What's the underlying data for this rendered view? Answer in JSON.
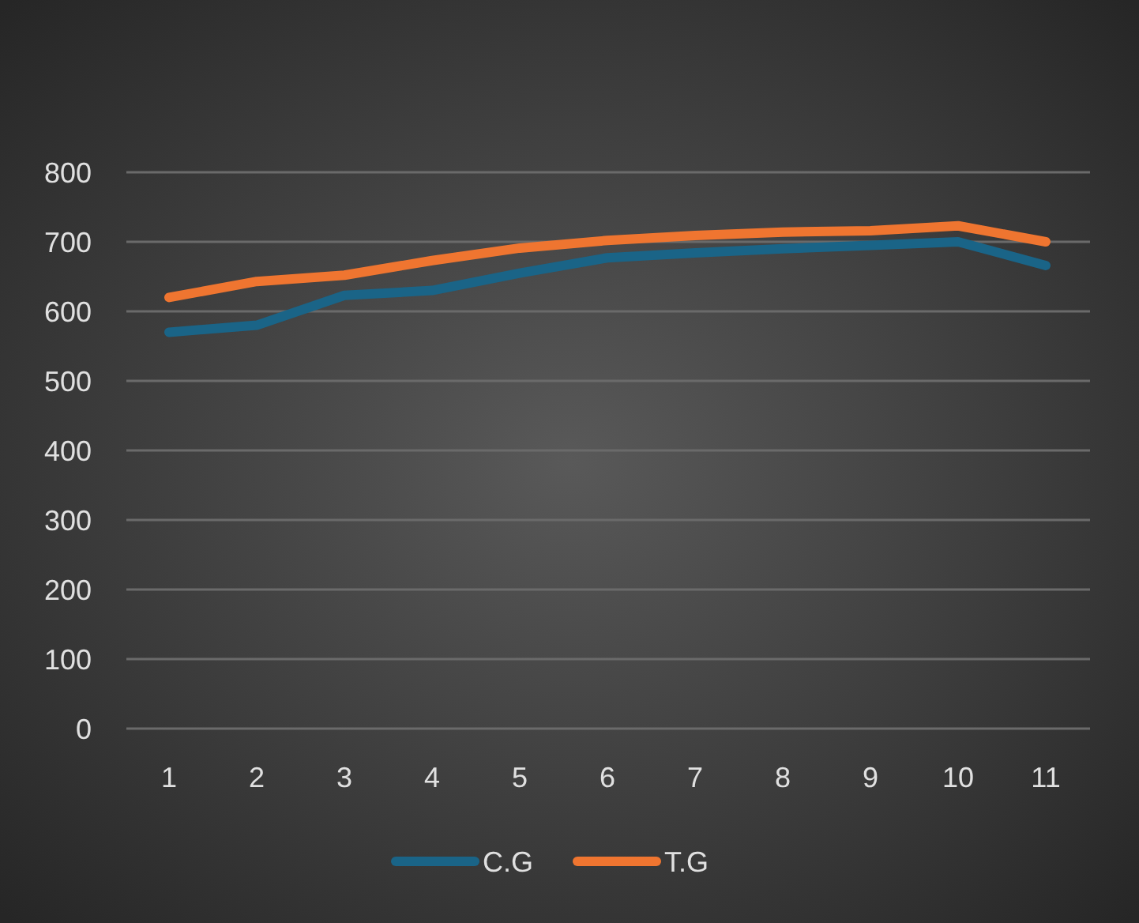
{
  "chart_data": {
    "type": "line",
    "categories": [
      "1",
      "2",
      "3",
      "4",
      "5",
      "6",
      "7",
      "8",
      "9",
      "10",
      "11"
    ],
    "series": [
      {
        "name": "C.G",
        "color": "#1a6487",
        "values": [
          570,
          580,
          623,
          630,
          655,
          677,
          684,
          690,
          695,
          700,
          666
        ]
      },
      {
        "name": "T.G",
        "color": "#ef7530",
        "values": [
          620,
          643,
          652,
          673,
          691,
          702,
          709,
          714,
          716,
          723,
          700
        ]
      }
    ],
    "ylim": [
      0,
      800
    ],
    "yticks": [
      0,
      100,
      200,
      300,
      400,
      500,
      600,
      700,
      800
    ],
    "grid": "y",
    "legend": "bottom",
    "marker": "none",
    "line_style": "solid"
  }
}
